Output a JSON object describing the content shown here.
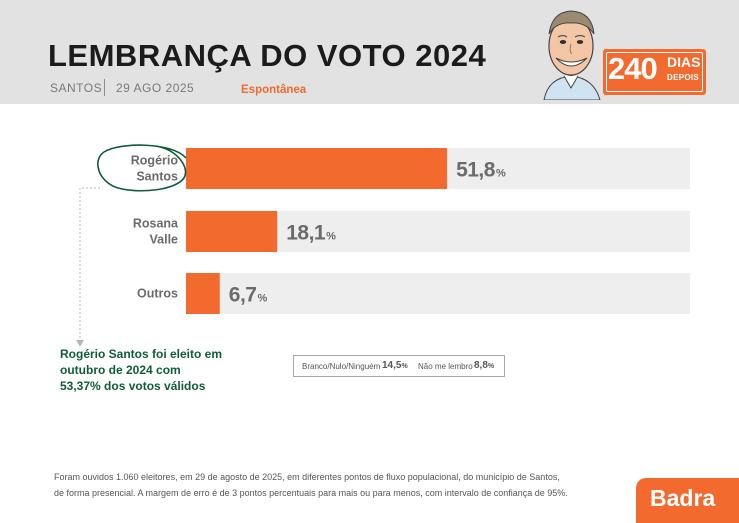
{
  "header": {
    "title": "LEMBRANÇA DO VOTO 2024",
    "city": "SANTOS",
    "date": "29 AGO 2025",
    "subtitle": "Espontânea",
    "badge_number": "240",
    "badge_word1": "DIAS",
    "badge_word2": "DEPOIS"
  },
  "colors": {
    "accent": "#f26a2e",
    "highlight_text": "#0f5c3a",
    "track": "#eeeeee"
  },
  "chart_data": {
    "type": "bar",
    "orientation": "horizontal",
    "categories": [
      "Rogério Santos",
      "Rosana Valle",
      "Outros"
    ],
    "category_lines": [
      [
        "Rogério",
        "Santos"
      ],
      [
        "Rosana",
        "Valle"
      ],
      [
        "Outros"
      ]
    ],
    "values": [
      51.8,
      18.1,
      6.7
    ],
    "value_labels": [
      "51,8",
      "18,1",
      "6,7"
    ],
    "unit": "%",
    "xlim": [
      0,
      100
    ]
  },
  "highlight_note": [
    "Rogério Santos foi eleito em",
    "outubro de 2024 com",
    "53,37% dos votos válidos"
  ],
  "other_answers": [
    {
      "label": "Branco/Nulo/Ninguém",
      "value": "14,5",
      "unit": "%"
    },
    {
      "label": "Não me lembro",
      "value": "8,8",
      "unit": "%"
    }
  ],
  "footnote": [
    "Foram ouvidos 1.060 eleitores, em 29 de agosto de 2025, em diferentes pontos de fluxo populacional, do município de Santos,",
    "de forma presencial. A margem de erro é de 3 pontos percentuais para mais ou para menos, com intervalo de confiança de 95%."
  ],
  "logo": "Badra"
}
